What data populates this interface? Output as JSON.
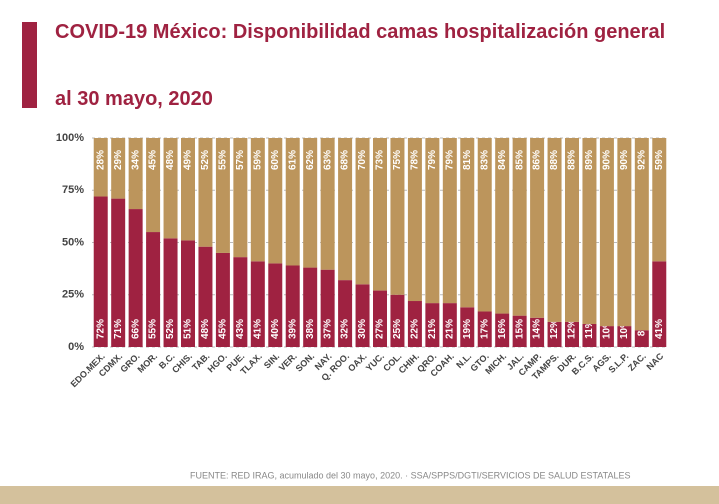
{
  "chart_data": {
    "type": "bar",
    "stacked": true,
    "title": "COVID-19 México: Disponibilidad camas hospitalización general",
    "subtitle": "al 30 mayo, 2020",
    "source": "FUENTE: RED IRAG, acumulado del 30 mayo, 2020. ·  SSA/SPPS/DGTI/SERVICIOS DE SALUD ESTATALES",
    "categories": [
      "EDO.MEX.",
      "CDMX.",
      "GRO.",
      "MOR.",
      "B.C.",
      "CHIS.",
      "TAB.",
      "HGO.",
      "PUE.",
      "TLAX.",
      "SIN.",
      "VER.",
      "SON.",
      "NAY.",
      "Q. ROO.",
      "OAX.",
      "YUC.",
      "COL.",
      "CHIH.",
      "QRO.",
      "COAH.",
      "N.L.",
      "GTO.",
      "MICH.",
      "JAL.",
      "CAMP.",
      "TAMPS.",
      "DUR.",
      "B.C.S.",
      "AGS.",
      "S.L.P.",
      "ZAC.",
      "NAC"
    ],
    "series": [
      {
        "color": "#9f2241",
        "values": [
          72,
          71,
          66,
          55,
          52,
          51,
          48,
          45,
          43,
          41,
          40,
          39,
          38,
          37,
          32,
          30,
          27,
          25,
          22,
          21,
          21,
          19,
          17,
          16,
          15,
          14,
          12,
          12,
          11,
          10,
          10,
          8,
          41
        ],
        "value_labels": [
          "72%",
          "71%",
          "66%",
          "55%",
          "52%",
          "51%",
          "48%",
          "45%",
          "43%",
          "41%",
          "40%",
          "39%",
          "38%",
          "37%",
          "32%",
          "30%",
          "27%",
          "25%",
          "22%",
          "21%",
          "21%",
          "19%",
          "17%",
          "16%",
          "15%",
          "14%",
          "12%",
          "12%",
          "11%",
          "10%",
          "10%",
          "8%",
          "41%"
        ]
      },
      {
        "color": "#bc955c",
        "values": [
          28,
          29,
          34,
          45,
          48,
          49,
          52,
          55,
          57,
          59,
          60,
          61,
          62,
          63,
          68,
          70,
          73,
          75,
          78,
          79,
          79,
          81,
          83,
          84,
          85,
          86,
          88,
          88,
          89,
          90,
          90,
          92,
          59
        ],
        "value_labels": [
          "28%",
          "29%",
          "34%",
          "45%",
          "48%",
          "49%",
          "52%",
          "55%",
          "57%",
          "59%",
          "60%",
          "61%",
          "62%",
          "63%",
          "68%",
          "70%",
          "73%",
          "75%",
          "78%",
          "79%",
          "79%",
          "81%",
          "83%",
          "84%",
          "85%",
          "86%",
          "88%",
          "88%",
          "89%",
          "90%",
          "90%",
          "92%",
          "59%"
        ]
      }
    ],
    "ylim": [
      0,
      100
    ],
    "yticks": [
      {
        "value": 0,
        "label": "0%"
      },
      {
        "value": 25,
        "label": "25%"
      },
      {
        "value": 50,
        "label": "50%"
      },
      {
        "value": 75,
        "label": "75%"
      },
      {
        "value": 100,
        "label": "100%"
      }
    ],
    "grid": true
  }
}
